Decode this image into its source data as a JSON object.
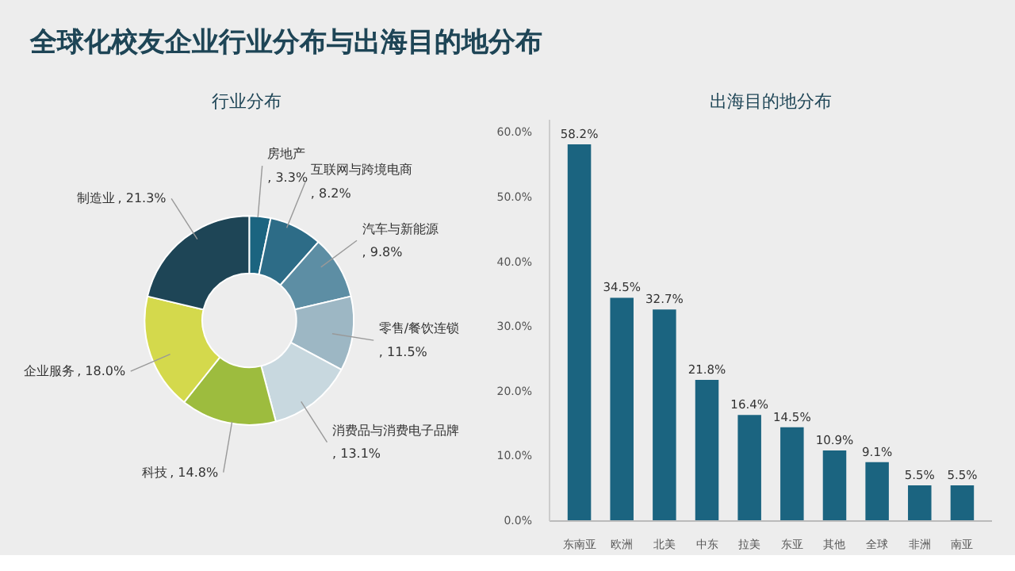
{
  "chart_data": [
    {
      "type": "donut",
      "title": "行业分布",
      "categories": [
        "房地产",
        "互联网与跨境电商",
        "汽车与新能源",
        "零售/餐饮连锁",
        "消费品与消费电子品牌",
        "科技",
        "企业服务",
        "制造业"
      ],
      "values": [
        3.3,
        8.2,
        9.8,
        11.5,
        13.1,
        14.8,
        18.0,
        21.3
      ],
      "value_labels": [
        ", 3.3%",
        ", 8.2%",
        ", 9.8%",
        ", 11.5%",
        ", 13.1%",
        ", 14.8%",
        ", 18.0%",
        ", 21.3%"
      ],
      "colors": [
        "#1b6480",
        "#2d6c87",
        "#5d8ea4",
        "#9db7c4",
        "#c8d8df",
        "#9dbc3e",
        "#d4d94c",
        "#1e4556"
      ],
      "annotations": [
        "全球化校友企业行业分布与出海目的地分布"
      ]
    },
    {
      "type": "bar",
      "title": "出海目的地分布",
      "categories": [
        "东南亚",
        "欧洲",
        "北美",
        "中东",
        "拉美",
        "东亚",
        "其他",
        "全球",
        "非洲",
        "南亚"
      ],
      "values": [
        58.2,
        34.5,
        32.7,
        21.8,
        16.4,
        14.5,
        10.9,
        9.1,
        5.5,
        5.5
      ],
      "value_labels": [
        "58.2%",
        "34.5%",
        "32.7%",
        "21.8%",
        "16.4%",
        "14.5%",
        "10.9%",
        "9.1%",
        "5.5%",
        "5.5%"
      ],
      "color": "#1b6480",
      "ylim": [
        0,
        62
      ],
      "yticks": [
        {
          "value": 0,
          "label": "0.0%"
        },
        {
          "value": 10,
          "label": "10.0%"
        },
        {
          "value": 20,
          "label": "20.0%"
        },
        {
          "value": 30,
          "label": "30.0%"
        },
        {
          "value": 40,
          "label": "40.0%"
        },
        {
          "value": 50,
          "label": "50.0%"
        },
        {
          "value": 60,
          "label": "60.0%"
        }
      ],
      "grid": false
    }
  ]
}
